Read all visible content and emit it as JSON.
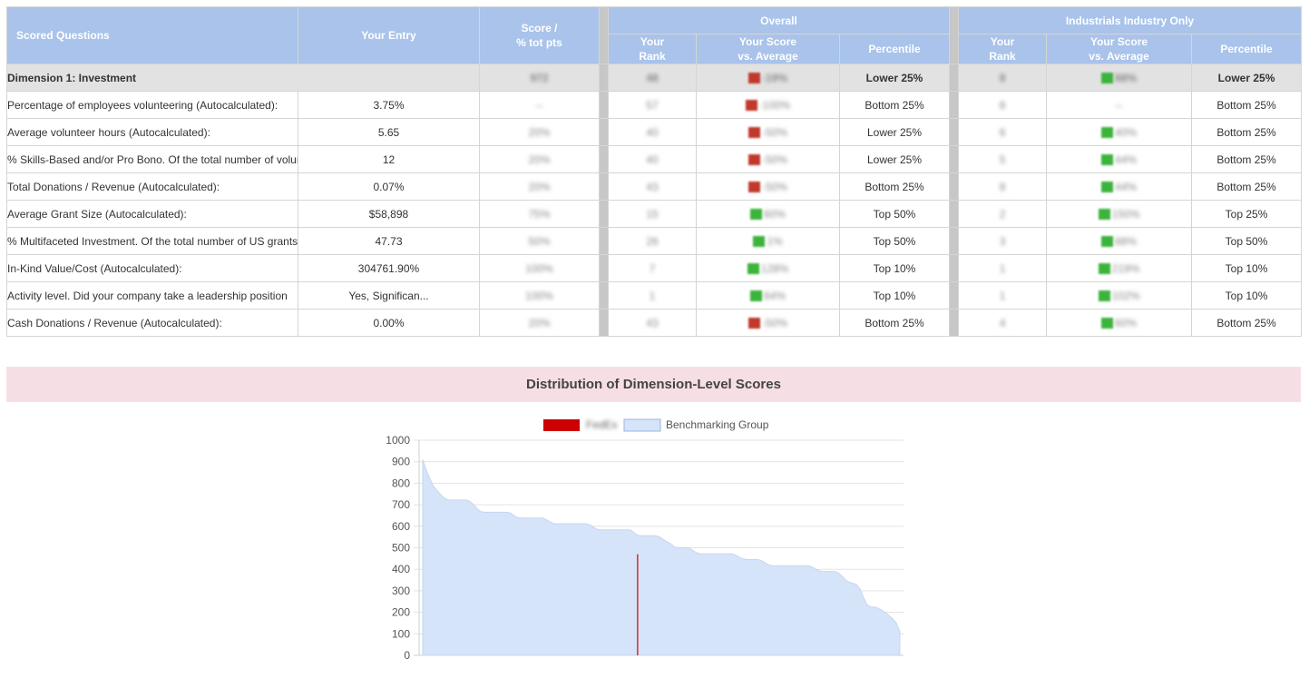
{
  "table": {
    "headers": {
      "scored_questions": "Scored Questions",
      "your_entry": "Your Entry",
      "score_line1": "Score /",
      "score_line2": "% tot pts",
      "overall": "Overall",
      "industry": "Industrials Industry Only",
      "your_rank_line1": "Your",
      "your_rank_line2": "Rank",
      "vs_avg_line1": "Your Score",
      "vs_avg_line2": "vs. Average",
      "percentile": "Percentile"
    },
    "dimension_row": {
      "label": "Dimension 1: Investment",
      "score": "972",
      "overall_rank": "48",
      "overall_vs": "-19%",
      "overall_vs_status": "red",
      "overall_percentile": "Lower 25%",
      "ind_rank": "8",
      "ind_vs": "88%",
      "ind_vs_status": "green",
      "ind_percentile": "Lower 25%"
    },
    "rows": [
      {
        "question": "Percentage of employees volunteering (Autocalculated):",
        "entry": "3.75%",
        "score": "--",
        "o_rank": "57",
        "o_vs": "-100%",
        "o_vs_status": "red",
        "o_pct": "Bottom 25%",
        "i_rank": "8",
        "i_vs": "--",
        "i_vs_status": "none",
        "i_pct": "Bottom 25%"
      },
      {
        "question": "Average volunteer hours (Autocalculated):",
        "entry": "5.65",
        "score": "20%",
        "o_rank": "40",
        "o_vs": "-50%",
        "o_vs_status": "red",
        "o_pct": "Lower 25%",
        "i_rank": "6",
        "i_vs": "40%",
        "i_vs_status": "green",
        "i_pct": "Bottom 25%"
      },
      {
        "question": "% Skills-Based and/or Pro Bono. Of the total number of volunteer hours",
        "entry": "12",
        "score": "20%",
        "o_rank": "40",
        "o_vs": "-50%",
        "o_vs_status": "red",
        "o_pct": "Lower 25%",
        "i_rank": "5",
        "i_vs": "44%",
        "i_vs_status": "green",
        "i_pct": "Bottom 25%"
      },
      {
        "question": "Total Donations / Revenue (Autocalculated):",
        "entry": "0.07%",
        "score": "20%",
        "o_rank": "43",
        "o_vs": "-50%",
        "o_vs_status": "red",
        "o_pct": "Bottom 25%",
        "i_rank": "8",
        "i_vs": "44%",
        "i_vs_status": "green",
        "i_pct": "Bottom 25%"
      },
      {
        "question": "Average Grant Size (Autocalculated):",
        "entry": "$58,898",
        "score": "75%",
        "o_rank": "15",
        "o_vs": "60%",
        "o_vs_status": "green",
        "o_pct": "Top 50%",
        "i_rank": "2",
        "i_vs": "150%",
        "i_vs_status": "green",
        "i_pct": "Top 25%"
      },
      {
        "question": "% Multifaceted Investment. Of the total number of US grants",
        "entry": "47.73",
        "score": "50%",
        "o_rank": "26",
        "o_vs": "1%",
        "o_vs_status": "green",
        "o_pct": "Top 50%",
        "i_rank": "3",
        "i_vs": "88%",
        "i_vs_status": "green",
        "i_pct": "Top 50%"
      },
      {
        "question": "In-Kind Value/Cost (Autocalculated):",
        "entry": "304761.90%",
        "score": "100%",
        "o_rank": "7",
        "o_vs": "128%",
        "o_vs_status": "green",
        "o_pct": "Top 10%",
        "i_rank": "1",
        "i_vs": "219%",
        "i_vs_status": "green",
        "i_pct": "Top 10%"
      },
      {
        "question": "Activity level. Did your company take a leadership position",
        "entry": "Yes, Significan...",
        "score": "100%",
        "o_rank": "1",
        "o_vs": "64%",
        "o_vs_status": "green",
        "o_pct": "Top 10%",
        "i_rank": "1",
        "i_vs": "102%",
        "i_vs_status": "green",
        "i_pct": "Top 10%"
      },
      {
        "question": "Cash Donations / Revenue (Autocalculated):",
        "entry": "0.00%",
        "score": "20%",
        "o_rank": "43",
        "o_vs": "-50%",
        "o_vs_status": "red",
        "o_pct": "Bottom 25%",
        "i_rank": "4",
        "i_vs": "60%",
        "i_vs_status": "green",
        "i_pct": "Bottom 25%"
      }
    ]
  },
  "section_title": "Distribution of Dimension-Level Scores",
  "chart_data": {
    "type": "area",
    "legend": [
      {
        "label": "FedEx",
        "color": "#cc0000",
        "blurred": true
      },
      {
        "label": "Benchmarking Group",
        "color": "#d6e4fa"
      }
    ],
    "legend_position": "top",
    "ylim": [
      0,
      1000
    ],
    "yticks": [
      "1000",
      "900",
      "800",
      "700",
      "600",
      "500",
      "400",
      "300",
      "200",
      "100",
      "0"
    ],
    "grid": true,
    "series": [
      {
        "name": "Benchmarking Group",
        "color": "#d6e4fa",
        "values": [
          910,
          860,
          820,
          785,
          765,
          745,
          730,
          722,
          722,
          722,
          722,
          722,
          722,
          715,
          700,
          680,
          668,
          665,
          665,
          665,
          665,
          665,
          665,
          665,
          662,
          650,
          640,
          638,
          638,
          638,
          638,
          638,
          638,
          638,
          630,
          620,
          612,
          612,
          612,
          612,
          612,
          612,
          612,
          612,
          612,
          612,
          605,
          595,
          585,
          583,
          583,
          583,
          583,
          583,
          583,
          583,
          583,
          583,
          570,
          558,
          556,
          556,
          556,
          556,
          556,
          550,
          540,
          528,
          520,
          505,
          500,
          500,
          500,
          500,
          490,
          478,
          472,
          472,
          472,
          472,
          472,
          472,
          472,
          472,
          472,
          472,
          465,
          455,
          448,
          445,
          445,
          445,
          445,
          440,
          430,
          420,
          416,
          416,
          416,
          416,
          416,
          416,
          416,
          416,
          416,
          416,
          416,
          410,
          400,
          392,
          390,
          390,
          390,
          390,
          385,
          370,
          352,
          340,
          335,
          330,
          310,
          270,
          235,
          225,
          225,
          220,
          210,
          200,
          185,
          170,
          150,
          110
        ]
      }
    ],
    "highlight": {
      "label": "FedEx",
      "color": "#cc0000",
      "x": 59,
      "value": 470
    }
  }
}
